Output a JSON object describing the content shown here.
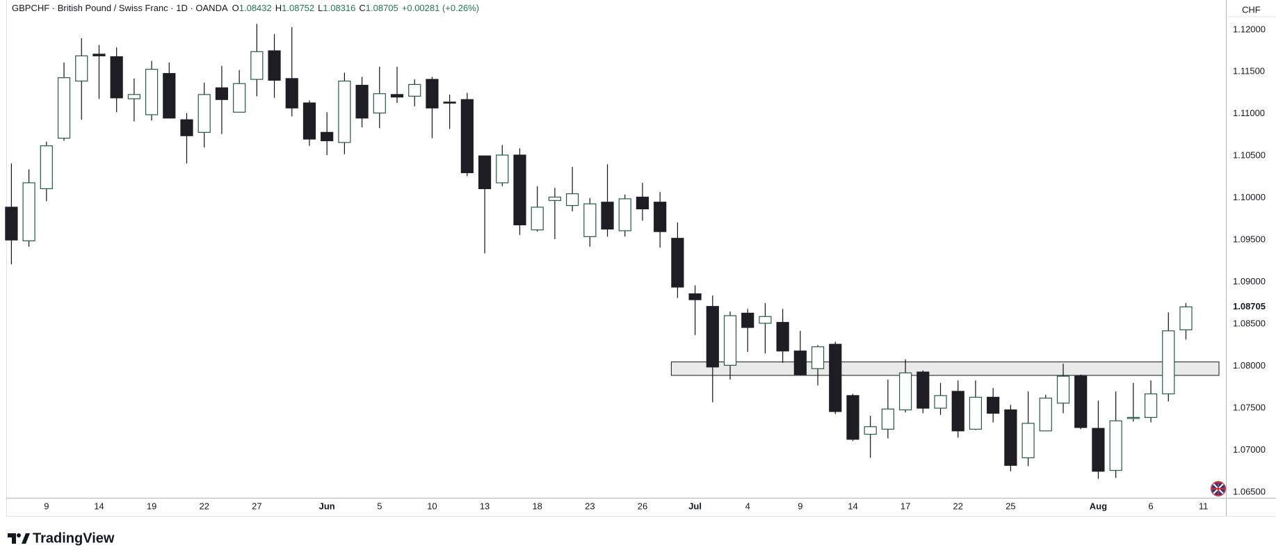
{
  "chart_data": {
    "type": "candlestick",
    "symbol": "GBPCHF · British Pound / Swiss Franc · 1D · OANDA",
    "ohlc_header": [
      {
        "label": "O",
        "value": 1.08432
      },
      {
        "label": "H",
        "value": 1.08752
      },
      {
        "label": "L",
        "value": 1.08316
      },
      {
        "label": "C",
        "value": 1.08705
      }
    ],
    "change": "+0.00281 (+0.26%)",
    "currency": "CHF",
    "last_price": 1.08705,
    "categories": [
      null,
      null,
      "9",
      null,
      null,
      "14",
      null,
      null,
      "19",
      null,
      null,
      "22",
      null,
      null,
      "27",
      null,
      null,
      null,
      "Jun",
      null,
      null,
      "5",
      null,
      null,
      "10",
      null,
      null,
      "13",
      null,
      null,
      "18",
      null,
      null,
      "23",
      null,
      null,
      "26",
      null,
      null,
      "Jul",
      null,
      null,
      "4",
      null,
      null,
      "9",
      null,
      null,
      "14",
      null,
      null,
      "17",
      null,
      null,
      "22",
      null,
      null,
      "25",
      null,
      null,
      null,
      null,
      "Aug",
      null,
      null,
      "6",
      null,
      null,
      "11"
    ],
    "open": [
      1.0989,
      1.0949,
      1.1011,
      1.1071,
      1.1139,
      1.1171,
      1.1168,
      1.1118,
      1.1099,
      1.1148,
      1.1093,
      1.1078,
      1.1131,
      1.1102,
      1.1141,
      1.1175,
      1.1142,
      1.1113,
      1.1078,
      1.1066,
      1.1134,
      1.1101,
      1.1123,
      1.1121,
      1.1141,
      1.1114,
      1.1117,
      1.105,
      1.1018,
      1.1051,
      1.0962,
      1.0997,
      1.0991,
      1.0954,
      1.0995,
      1.0961,
      1.1001,
      1.0995,
      1.0952,
      1.0886,
      1.0871,
      1.0801,
      1.0863,
      1.0851,
      1.0852,
      1.0818,
      1.0797,
      1.0826,
      1.0765,
      1.0719,
      1.0725,
      1.0748,
      1.0793,
      1.075,
      1.077,
      1.0725,
      1.0763,
      1.0748,
      1.0691,
      1.0723,
      1.0756,
      1.0788,
      1.0726,
      1.0676,
      1.0738,
      1.0739,
      1.0767,
      1.08432,
      null
    ],
    "high": [
      1.1041,
      1.1034,
      1.1067,
      1.1161,
      1.119,
      1.1182,
      1.1179,
      1.1142,
      1.1163,
      1.1161,
      1.1101,
      1.1137,
      1.1157,
      1.1152,
      1.1207,
      1.1195,
      1.1203,
      1.1116,
      1.1102,
      1.1149,
      1.1144,
      1.1156,
      1.1156,
      1.1141,
      1.1144,
      1.1123,
      1.1125,
      1.105,
      1.1063,
      1.1059,
      1.1014,
      1.1012,
      1.1037,
      1.1,
      1.104,
      1.1004,
      1.1018,
      1.1007,
      1.0971,
      1.0896,
      1.0884,
      1.0865,
      1.0868,
      1.0875,
      1.0868,
      1.0842,
      1.0825,
      1.0829,
      1.0767,
      1.0741,
      1.0784,
      1.0808,
      1.0795,
      1.078,
      1.0783,
      1.0783,
      1.0774,
      1.0754,
      1.077,
      1.0766,
      1.0803,
      1.079,
      1.0759,
      1.077,
      1.078,
      1.0783,
      1.0864,
      1.08752,
      null
    ],
    "low": [
      1.0921,
      1.0942,
      1.0996,
      1.1068,
      1.1093,
      1.1118,
      1.1102,
      1.1091,
      1.1092,
      1.1095,
      1.1041,
      1.106,
      1.1076,
      1.1102,
      1.1121,
      1.1119,
      1.1097,
      1.1062,
      1.1051,
      1.1052,
      1.1084,
      1.1083,
      1.1113,
      1.1109,
      1.1071,
      1.1082,
      1.1026,
      1.0934,
      1.1014,
      1.0956,
      1.096,
      1.0951,
      1.0984,
      1.0942,
      1.0954,
      1.0954,
      1.0973,
      1.0941,
      1.0881,
      1.0837,
      1.0757,
      1.0784,
      1.0817,
      1.0815,
      1.0804,
      1.0789,
      1.0777,
      1.0743,
      1.0711,
      1.0691,
      1.0714,
      1.0745,
      1.0744,
      1.0742,
      1.0715,
      1.0724,
      1.0733,
      1.0675,
      1.0681,
      1.0723,
      1.0744,
      1.0725,
      1.0666,
      1.0667,
      1.0734,
      1.0733,
      1.0758,
      1.08316,
      null
    ],
    "close": [
      1.095,
      1.1018,
      1.1062,
      1.1143,
      1.1169,
      1.1169,
      1.1119,
      1.1123,
      1.1153,
      1.1095,
      1.1074,
      1.1123,
      1.1117,
      1.1136,
      1.1174,
      1.114,
      1.1107,
      1.107,
      1.1068,
      1.1139,
      1.1095,
      1.1124,
      1.112,
      1.1135,
      1.1107,
      1.1113,
      1.103,
      1.1011,
      1.1051,
      1.0968,
      1.0989,
      1.1001,
      1.1005,
      1.0993,
      1.0963,
      1.0999,
      1.0987,
      1.096,
      1.0894,
      1.0879,
      1.0799,
      1.086,
      1.0846,
      1.0859,
      1.0818,
      1.079,
      1.0823,
      1.0746,
      1.0713,
      1.0728,
      1.0749,
      1.0792,
      1.075,
      1.0765,
      1.0723,
      1.0763,
      1.0744,
      1.0682,
      1.0732,
      1.0762,
      1.0788,
      1.0727,
      1.0675,
      1.0735,
      1.0739,
      1.0767,
      1.0842,
      1.08705,
      null
    ],
    "zone": [
      1.0789,
      1.0805
    ],
    "ylim": [
      1.06434,
      1.12354
    ],
    "yticks": [
      {
        "value": 1.065,
        "label": "1.06500"
      },
      {
        "value": 1.07,
        "label": "1.07000"
      },
      {
        "value": 1.075,
        "label": "1.07500"
      },
      {
        "value": 1.08,
        "label": "1.08000"
      },
      {
        "value": 1.085,
        "label": "1.08500"
      },
      {
        "value": 1.09,
        "label": "1.09000"
      },
      {
        "value": 1.095,
        "label": "1.09500"
      },
      {
        "value": 1.1,
        "label": "1.10000"
      },
      {
        "value": 1.105,
        "label": "1.10500"
      },
      {
        "value": 1.11,
        "label": "1.11000"
      },
      {
        "value": 1.115,
        "label": "1.11500"
      },
      {
        "value": 1.12,
        "label": "1.12000"
      }
    ],
    "grid": false,
    "colors": {
      "up_border": "#1f5c45",
      "up_fill": "#ffffff",
      "down": "#1e1d24",
      "wick": "#111111",
      "header_value": "#1f7a4c",
      "zone": "#e3e3e3"
    }
  },
  "brand": "TradingView"
}
